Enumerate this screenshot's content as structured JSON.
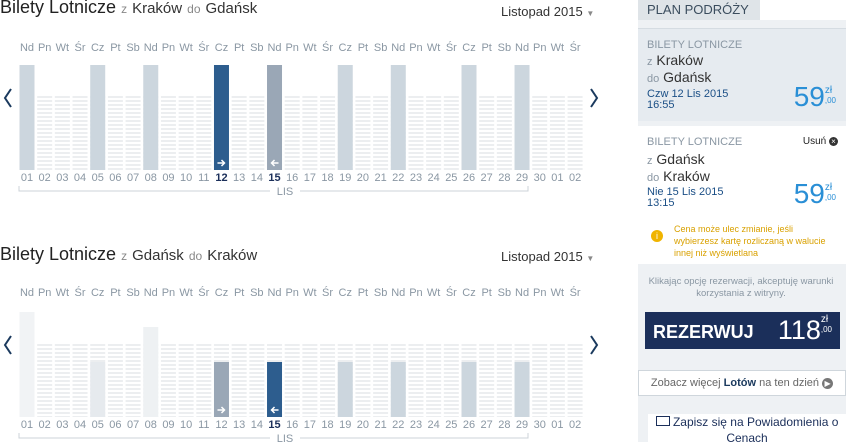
{
  "calendars": [
    {
      "title": "Bilety Lotnicze",
      "from_word": "z",
      "from": "Kraków",
      "to_word": "do",
      "to": "Gdańsk",
      "month": "Listopad 2015",
      "weekdays": [
        "Nd",
        "Pn",
        "Wt",
        "Śr",
        "Cz",
        "Pt",
        "Sb",
        "Nd",
        "Pn",
        "Wt",
        "Śr",
        "Cz",
        "Pt",
        "Sb",
        "Nd",
        "Pn",
        "Wt",
        "Śr",
        "Cz",
        "Pt",
        "Sb",
        "Nd",
        "Pn",
        "Wt",
        "Śr",
        "Cz",
        "Pt",
        "Sb",
        "Nd",
        "Pn",
        "Wt",
        "Śr"
      ],
      "dates": [
        "01",
        "02",
        "03",
        "04",
        "05",
        "06",
        "07",
        "08",
        "09",
        "10",
        "11",
        "12",
        "13",
        "14",
        "15",
        "16",
        "17",
        "18",
        "19",
        "20",
        "21",
        "22",
        "23",
        "24",
        "25",
        "26",
        "27",
        "28",
        "29",
        "30",
        "01",
        "02"
      ],
      "month_label": "LIS"
    },
    {
      "title": "Bilety Lotnicze",
      "from_word": "z",
      "from": "Gdańsk",
      "to_word": "do",
      "to": "Kraków",
      "month": "Listopad 2015",
      "weekdays": [
        "Nd",
        "Pn",
        "Wt",
        "Śr",
        "Cz",
        "Pt",
        "Sb",
        "Nd",
        "Pn",
        "Wt",
        "Śr",
        "Cz",
        "Pt",
        "Sb",
        "Nd",
        "Pn",
        "Wt",
        "Śr",
        "Cz",
        "Pt",
        "Sb",
        "Nd",
        "Pn",
        "Wt",
        "Śr",
        "Cz",
        "Pt",
        "Sb",
        "Nd",
        "Pn",
        "Wt",
        "Śr"
      ],
      "dates": [
        "01",
        "02",
        "03",
        "04",
        "05",
        "06",
        "07",
        "08",
        "09",
        "10",
        "11",
        "12",
        "13",
        "14",
        "15",
        "16",
        "17",
        "18",
        "19",
        "20",
        "21",
        "22",
        "23",
        "24",
        "25",
        "26",
        "27",
        "28",
        "29",
        "30",
        "01",
        "02"
      ],
      "month_label": "LIS"
    }
  ],
  "sidebar": {
    "header": "PLAN PODRÓŻY",
    "flights": [
      {
        "label": "BILETY LOTNICZE",
        "from_word": "z",
        "from": "Kraków",
        "to_word": "do",
        "to": "Gdańsk",
        "date": "Czw 12 Lis 2015",
        "time": "16:55",
        "price": "59",
        "currency": "zł",
        "cents": ",00"
      },
      {
        "label": "BILETY LOTNICZE",
        "remove": "Usuń",
        "from_word": "z",
        "from": "Gdańsk",
        "to_word": "do",
        "to": "Kraków",
        "date": "Nie 15 Lis 2015",
        "time": "13:15",
        "price": "59",
        "currency": "zł",
        "cents": ",00"
      }
    ],
    "notice": "Cena może ulec zmianie, jeśli wybierzesz kartę rozliczaną w walucie innej niż wyświetlana",
    "terms": "Klikając opcję rezerwacji, akceptuję warunki korzystania z witryny.",
    "book_button": "REZERWUJ",
    "total": "118",
    "total_currency": "zł",
    "total_cents": ",00",
    "more_prefix": "Zobacz więcej",
    "more_bold": "Lotów",
    "more_suffix": "na ten dzień",
    "alerts": "Zapisz się na Powiadomienia o Cenach"
  }
}
